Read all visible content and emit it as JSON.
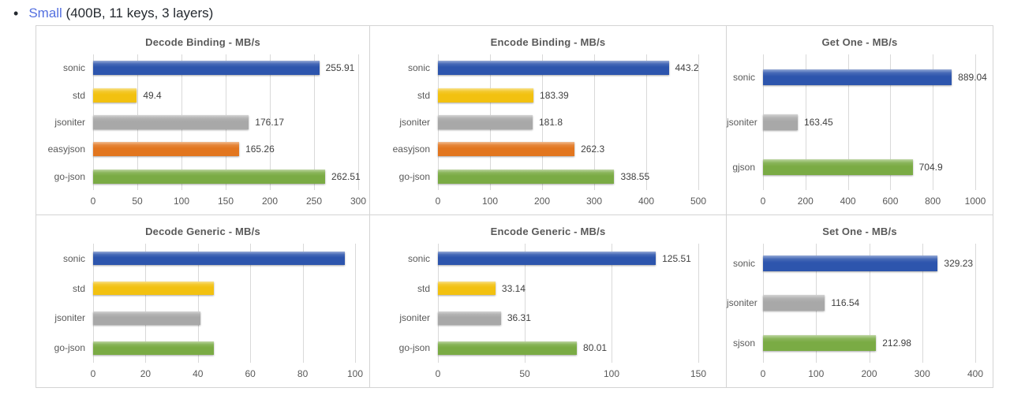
{
  "page": {
    "bullet": "•",
    "link_text": "Small",
    "suffix": " (400B, 11 keys, 3 layers)",
    "link_color": "#5470e0",
    "text_color": "#24292f"
  },
  "colors": {
    "blue": "#2d55ad",
    "gold": "#f2c110",
    "gray": "#a8a8a8",
    "orange": "#e2761f",
    "green": "#7aab44",
    "gridline": "#d9d9d9",
    "border": "#d4d4d4",
    "title_text": "#595959",
    "label_text": "#595959",
    "value_text": "#404040"
  },
  "chart_data": [
    {
      "type": "bar",
      "orientation": "horizontal",
      "title": "Decode Binding - MB/s",
      "categories": [
        "sonic",
        "std",
        "jsoniter",
        "easyjson",
        "go-json"
      ],
      "values": [
        255.91,
        49.4,
        176.17,
        165.26,
        262.51
      ],
      "value_labels": [
        "255.91",
        "49.4",
        "176.17",
        "165.26",
        "262.51"
      ],
      "bar_colors": [
        "blue",
        "gold",
        "gray",
        "orange",
        "green"
      ],
      "xlim": [
        0,
        300
      ],
      "xticks": [
        0,
        50,
        100,
        150,
        200,
        250,
        300
      ],
      "grid": true,
      "legend": "none"
    },
    {
      "type": "bar",
      "orientation": "horizontal",
      "title": "Encode Binding - MB/s",
      "categories": [
        "sonic",
        "std",
        "jsoniter",
        "easyjson",
        "go-json"
      ],
      "values": [
        443.2,
        183.39,
        181.8,
        262.3,
        338.55
      ],
      "value_labels": [
        "443.2",
        "183.39",
        "181.8",
        "262.3",
        "338.55"
      ],
      "bar_colors": [
        "blue",
        "gold",
        "gray",
        "orange",
        "green"
      ],
      "xlim": [
        0,
        500
      ],
      "xticks": [
        0,
        100,
        200,
        300,
        400,
        500
      ],
      "grid": true,
      "legend": "none"
    },
    {
      "type": "bar",
      "orientation": "horizontal",
      "title": "Get One - MB/s",
      "categories": [
        "sonic",
        "jsoniter",
        "gjson"
      ],
      "values": [
        889.04,
        163.45,
        704.9
      ],
      "value_labels": [
        "889.04",
        "163.45",
        "704.9"
      ],
      "bar_colors": [
        "blue",
        "gray",
        "green"
      ],
      "xlim": [
        0,
        1000
      ],
      "xticks": [
        0,
        200,
        400,
        600,
        800,
        1000
      ],
      "grid": true,
      "legend": "none"
    },
    {
      "type": "bar",
      "orientation": "horizontal",
      "title": "Decode Generic - MB/s",
      "categories": [
        "sonic",
        "std",
        "jsoniter",
        "go-json"
      ],
      "values": [
        96,
        46,
        41,
        46
      ],
      "values_estimated": true,
      "value_labels": null,
      "bar_colors": [
        "blue",
        "gold",
        "gray",
        "green"
      ],
      "xlim": [
        0,
        100
      ],
      "xticks": [
        0,
        20,
        40,
        60,
        80,
        100
      ],
      "grid": true,
      "legend": "none"
    },
    {
      "type": "bar",
      "orientation": "horizontal",
      "title": "Encode Generic - MB/s",
      "categories": [
        "sonic",
        "std",
        "jsoniter",
        "go-json"
      ],
      "values": [
        125.51,
        33.14,
        36.31,
        80.01
      ],
      "value_labels": [
        "125.51",
        "33.14",
        "36.31",
        "80.01"
      ],
      "bar_colors": [
        "blue",
        "gold",
        "gray",
        "green"
      ],
      "xlim": [
        0,
        150
      ],
      "xticks": [
        0,
        50,
        100,
        150
      ],
      "grid": true,
      "legend": "none"
    },
    {
      "type": "bar",
      "orientation": "horizontal",
      "title": "Set One - MB/s",
      "categories": [
        "sonic",
        "jsoniter",
        "sjson"
      ],
      "values": [
        329.23,
        116.54,
        212.98
      ],
      "value_labels": [
        "329.23",
        "116.54",
        "212.98"
      ],
      "bar_colors": [
        "blue",
        "gray",
        "green"
      ],
      "xlim": [
        0,
        400
      ],
      "xticks": [
        0,
        100,
        200,
        300,
        400
      ],
      "grid": true,
      "legend": "none"
    }
  ]
}
